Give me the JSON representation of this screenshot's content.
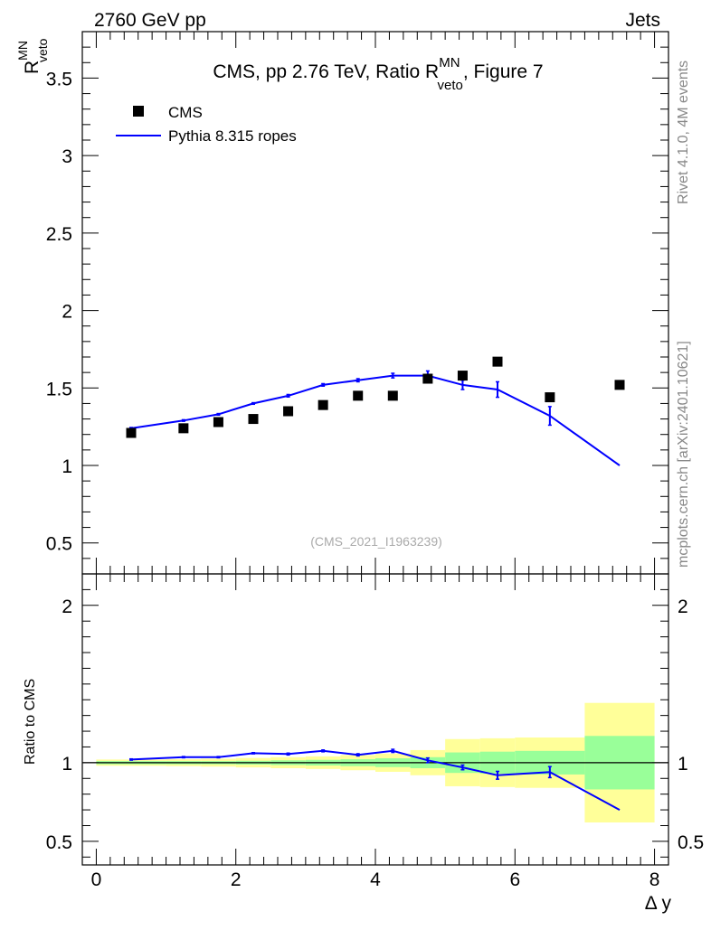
{
  "header": {
    "left": "2760 GeV pp",
    "right": "Jets"
  },
  "side_text": {
    "rivet": "Rivet 4.1.0,  4M events",
    "mcplots": "mcplots.cern.ch [arXiv:2401.10621]"
  },
  "colors": {
    "data": "#000000",
    "mc": "#0000ff",
    "band_stat": "#99ff99",
    "band_total": "#ffff99"
  },
  "chart_data": [
    {
      "name": "main",
      "type": "scatter",
      "title": "CMS, pp 2.76 TeV, Ratio R",
      "title_sup": "MN",
      "title_sub": "veto",
      "title_suffix": ", Figure 7",
      "ylabel": "R",
      "ylabel_sup": "MN",
      "ylabel_sub": "veto",
      "xlim": [
        -0.2,
        8.2
      ],
      "ylim": [
        0.3,
        3.8
      ],
      "yticks": [
        "0.5",
        "1",
        "1.5",
        "2",
        "2.5",
        "3",
        "3.5"
      ],
      "watermark": "(CMS_2021_I1963239)",
      "legend": {
        "data_label": "CMS",
        "mc_label": "Pythia 8.315 ropes",
        "position": "top-left"
      },
      "data": {
        "name": "CMS",
        "x": [
          0.5,
          1.25,
          1.75,
          2.25,
          2.75,
          3.25,
          3.75,
          4.25,
          4.75,
          5.25,
          5.75,
          6.5,
          7.5
        ],
        "y": [
          1.21,
          1.24,
          1.28,
          1.3,
          1.35,
          1.39,
          1.45,
          1.45,
          1.56,
          1.58,
          1.67,
          1.44,
          1.52
        ]
      },
      "mc": {
        "name": "Pythia 8.315 ropes",
        "x": [
          0.5,
          1.25,
          1.75,
          2.25,
          2.75,
          3.25,
          3.75,
          4.25,
          4.75,
          5.25,
          5.75,
          6.5,
          7.5
        ],
        "y": [
          1.24,
          1.29,
          1.33,
          1.4,
          1.45,
          1.52,
          1.55,
          1.58,
          1.58,
          1.52,
          1.49,
          1.32,
          1.0
        ],
        "err": [
          0.005,
          0.005,
          0.005,
          0.005,
          0.008,
          0.008,
          0.01,
          0.015,
          0.03,
          0.03,
          0.05,
          0.06,
          0
        ]
      }
    },
    {
      "name": "ratio",
      "type": "line",
      "ylabel": "Ratio to CMS",
      "xlabel": "Δ y",
      "xlim": [
        -0.2,
        8.2
      ],
      "ylim": [
        0.35,
        2.2
      ],
      "xticks": [
        "0",
        "2",
        "4",
        "6",
        "8"
      ],
      "yticks": [
        "0.5",
        "1",
        "2"
      ],
      "bands": {
        "edges": [
          0,
          1,
          1.5,
          2,
          2.5,
          3,
          3.5,
          4,
          4.5,
          5,
          5.5,
          6,
          7,
          8
        ],
        "stat_half": [
          0.01,
          0.01,
          0.01,
          0.012,
          0.015,
          0.018,
          0.022,
          0.028,
          0.035,
          0.065,
          0.07,
          0.075,
          0.17
        ],
        "total_half": [
          0.02,
          0.022,
          0.025,
          0.03,
          0.035,
          0.04,
          0.048,
          0.058,
          0.08,
          0.15,
          0.155,
          0.16,
          0.38
        ]
      },
      "mc": {
        "x": [
          0.5,
          1.25,
          1.75,
          2.25,
          2.75,
          3.25,
          3.75,
          4.25,
          4.75,
          5.25,
          5.75,
          6.5,
          7.5
        ],
        "y": [
          1.02,
          1.035,
          1.035,
          1.06,
          1.055,
          1.075,
          1.05,
          1.075,
          1.015,
          0.97,
          0.92,
          0.94,
          0.7
        ],
        "err": [
          0.004,
          0.004,
          0.004,
          0.004,
          0.006,
          0.006,
          0.007,
          0.01,
          0.015,
          0.015,
          0.025,
          0.035,
          0
        ]
      }
    }
  ]
}
